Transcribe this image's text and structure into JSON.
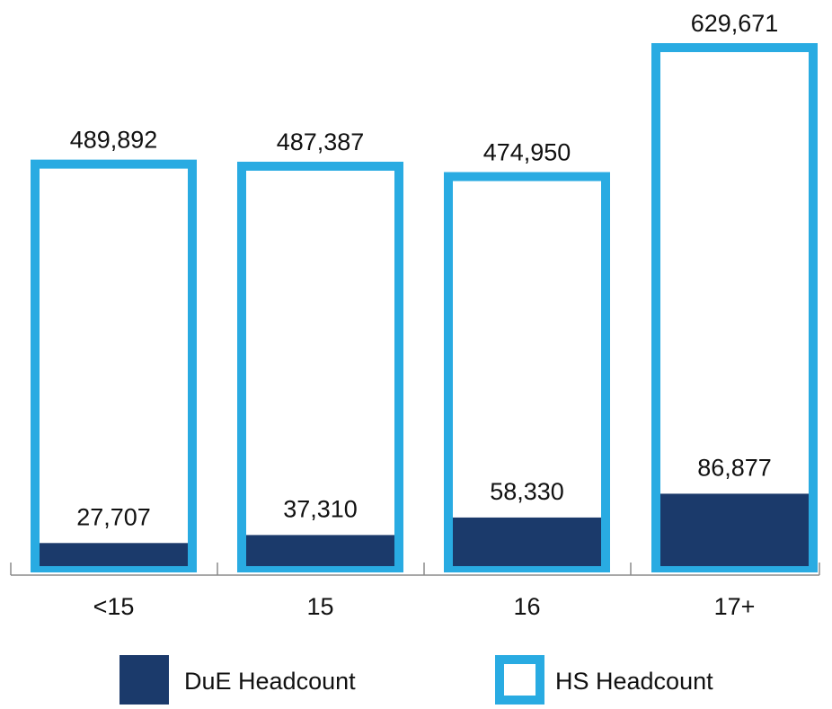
{
  "chart_data": {
    "type": "bar",
    "categories": [
      "<15",
      "15",
      "16",
      "17+"
    ],
    "series": [
      {
        "name": "DuE Headcount",
        "values": [
          27707,
          37310,
          58330,
          86877
        ],
        "labels": [
          "27,707",
          "37,310",
          "58,330",
          "86,877"
        ],
        "color": "#1b3a6b",
        "style": "filled"
      },
      {
        "name": "HS Headcount",
        "values": [
          489892,
          487387,
          474950,
          629671
        ],
        "labels": [
          "489,892",
          "487,387",
          "474,950",
          "629,671"
        ],
        "color": "#29abe2",
        "style": "outline"
      }
    ],
    "ylim": [
      0,
      629671
    ],
    "grid": false,
    "legend": "bottom",
    "title": "",
    "xlabel": "",
    "ylabel": ""
  }
}
